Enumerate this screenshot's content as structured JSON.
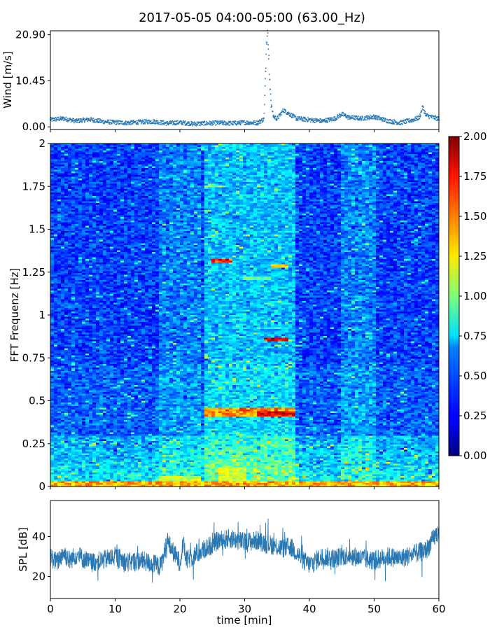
{
  "title": "2017-05-05 04:00-05:00 (63.00_Hz)",
  "chart_data": [
    {
      "type": "scatter",
      "name": "wind",
      "ylabel": "Wind [m/s]",
      "xlim": [
        0,
        60
      ],
      "ylim": [
        -0.6,
        21.8
      ],
      "yticks": [
        0.0,
        10.45,
        20.9
      ],
      "ytick_labels": [
        "0.00",
        "10.45",
        "20.90"
      ],
      "color": "#2a78b2",
      "x": [
        0,
        2,
        4,
        6,
        8,
        10,
        12,
        14,
        16,
        18,
        20,
        22,
        24,
        26,
        28,
        30,
        32,
        33,
        33.4,
        33.6,
        33.8,
        34,
        34.4,
        35,
        36,
        38,
        40,
        42,
        44,
        45,
        46,
        48,
        50,
        52,
        54,
        56,
        57,
        57.5,
        58,
        59,
        60
      ],
      "y": [
        1.6,
        1.9,
        1.3,
        1.7,
        1.2,
        1.0,
        0.9,
        1.1,
        1.2,
        0.8,
        1.0,
        0.7,
        0.8,
        0.9,
        0.8,
        1.0,
        0.9,
        1.8,
        20.5,
        20.9,
        13.0,
        6.5,
        2.5,
        1.8,
        3.8,
        1.9,
        1.6,
        1.3,
        1.9,
        2.9,
        2.2,
        1.9,
        2.3,
        1.4,
        0.9,
        1.6,
        2.1,
        4.5,
        2.6,
        2.2,
        1.8
      ]
    },
    {
      "type": "heatmap",
      "name": "spectrogram",
      "ylabel": "FFT Frequenz [Hz]",
      "xlim": [
        0,
        60
      ],
      "ylim": [
        0,
        2
      ],
      "yticks": [
        0,
        0.25,
        0.5,
        0.75,
        1,
        1.25,
        1.5,
        1.75,
        2
      ],
      "ytick_labels": [
        "0",
        "0.25",
        "0.5",
        "0.75",
        "1",
        "1.25",
        "1.5",
        "1.75",
        "2"
      ],
      "colorscale": "jet",
      "clim": [
        0,
        2
      ],
      "colorbar_ticks": [
        "0.00",
        "0.25",
        "0.50",
        "0.75",
        "1.00",
        "1.25",
        "1.50",
        "1.75",
        "2.00"
      ],
      "hotspots": [
        {
          "t0": 0,
          "t1": 60,
          "f0": 0.0,
          "f1": 0.03,
          "v": 1.6
        },
        {
          "t0": 17,
          "t1": 23,
          "f0": 0.0,
          "f1": 0.06,
          "v": 1.3
        },
        {
          "t0": 26,
          "t1": 30,
          "f0": 0.0,
          "f1": 0.11,
          "v": 1.3
        },
        {
          "t0": 24,
          "t1": 38,
          "f0": 0.41,
          "f1": 0.46,
          "v": 1.7
        },
        {
          "t0": 32,
          "t1": 38,
          "f0": 0.41,
          "f1": 0.44,
          "v": 2.0
        },
        {
          "t0": 33,
          "t1": 37,
          "f0": 0.85,
          "f1": 0.87,
          "v": 2.0
        },
        {
          "t0": 25,
          "t1": 28,
          "f0": 1.31,
          "f1": 1.33,
          "v": 1.9
        },
        {
          "t0": 34,
          "t1": 37,
          "f0": 1.28,
          "f1": 1.3,
          "v": 1.5
        },
        {
          "t0": 24,
          "t1": 27,
          "f0": 1.74,
          "f1": 1.76,
          "v": 1.2
        },
        {
          "t0": 30,
          "t1": 34,
          "f0": 1.2,
          "f1": 1.22,
          "v": 1.1
        }
      ]
    },
    {
      "type": "line",
      "name": "spl",
      "xlabel": "time [min]",
      "ylabel": "SPL [dB]",
      "xlim": [
        0,
        60
      ],
      "ylim": [
        9,
        58
      ],
      "xticks": [
        0,
        10,
        20,
        30,
        40,
        50,
        60
      ],
      "yticks": [
        20,
        40
      ],
      "color": "#2a78b2",
      "x": [
        0,
        1,
        2,
        3,
        4,
        5,
        6,
        8,
        10,
        12,
        14,
        16,
        17,
        17.5,
        18,
        19,
        20,
        20.5,
        21,
        22,
        24,
        26,
        28,
        30,
        32,
        34,
        36,
        37,
        38,
        39,
        40,
        42,
        44,
        46,
        48,
        50,
        52,
        54,
        56,
        58,
        59,
        60
      ],
      "y": [
        30,
        27,
        32,
        28,
        31,
        29,
        27,
        28,
        30,
        27,
        28,
        26,
        25,
        30,
        38,
        32,
        27,
        37,
        28,
        30,
        34,
        38,
        39,
        37,
        38,
        36,
        34,
        35,
        32,
        28,
        26,
        30,
        29,
        31,
        29,
        28,
        30,
        29,
        31,
        33,
        38,
        43
      ]
    }
  ]
}
